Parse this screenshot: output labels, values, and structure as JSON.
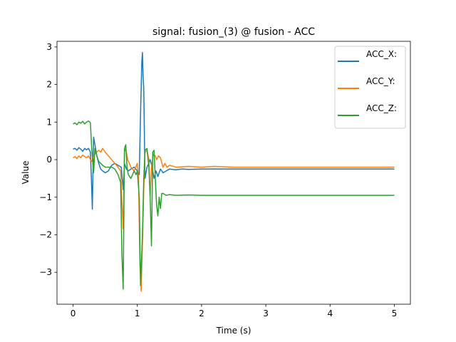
{
  "chart_data": {
    "type": "line",
    "title": "signal: fusion_(3) @ fusion - ACC",
    "xlabel": "Time (s)",
    "ylabel": "Value",
    "xlim": [
      -0.25,
      5.25
    ],
    "ylim": [
      -3.85,
      3.15
    ],
    "xticks": [
      0,
      1,
      2,
      3,
      4,
      5
    ],
    "yticks": [
      -3,
      -2,
      -1,
      0,
      1,
      2,
      3
    ],
    "grid": false,
    "legend_position": "top-right",
    "series": [
      {
        "name": "ACC_X:",
        "color": "#1f77b4",
        "points": [
          [
            0,
            0.28
          ],
          [
            0.03,
            0.3
          ],
          [
            0.06,
            0.25
          ],
          [
            0.09,
            0.32
          ],
          [
            0.12,
            0.28
          ],
          [
            0.15,
            0.22
          ],
          [
            0.18,
            0.3
          ],
          [
            0.21,
            0.26
          ],
          [
            0.24,
            0.3
          ],
          [
            0.27,
            0.2
          ],
          [
            0.285,
            -0.5
          ],
          [
            0.3,
            -1.32
          ],
          [
            0.31,
            -0.3
          ],
          [
            0.32,
            0.6
          ],
          [
            0.34,
            0.4
          ],
          [
            0.37,
            0.1
          ],
          [
            0.4,
            -0.1
          ],
          [
            0.43,
            -0.25
          ],
          [
            0.46,
            -0.3
          ],
          [
            0.5,
            -0.35
          ],
          [
            0.55,
            -0.3
          ],
          [
            0.6,
            -0.15
          ],
          [
            0.65,
            -0.1
          ],
          [
            0.7,
            -0.15
          ],
          [
            0.75,
            -0.2
          ],
          [
            0.78,
            -0.8
          ],
          [
            0.8,
            -0.1
          ],
          [
            0.83,
            -0.25
          ],
          [
            0.86,
            -0.3
          ],
          [
            0.9,
            -0.25
          ],
          [
            0.95,
            -0.2
          ],
          [
            1.0,
            -0.3
          ],
          [
            1.03,
            -0.4
          ],
          [
            1.05,
            1.2
          ],
          [
            1.07,
            2.6
          ],
          [
            1.08,
            2.85
          ],
          [
            1.09,
            2.2
          ],
          [
            1.1,
            1.9
          ],
          [
            1.12,
            -0.5
          ],
          [
            1.15,
            -0.2
          ],
          [
            1.18,
            -0.1
          ],
          [
            1.2,
            0.0
          ],
          [
            1.23,
            -0.2
          ],
          [
            1.26,
            -0.5
          ],
          [
            1.29,
            -0.3
          ],
          [
            1.32,
            -0.45
          ],
          [
            1.36,
            -0.25
          ],
          [
            1.4,
            -0.35
          ],
          [
            1.45,
            -0.3
          ],
          [
            1.5,
            -0.25
          ],
          [
            1.6,
            -0.27
          ],
          [
            1.7,
            -0.25
          ],
          [
            1.8,
            -0.26
          ],
          [
            2.0,
            -0.25
          ],
          [
            2.5,
            -0.25
          ],
          [
            3.0,
            -0.25
          ],
          [
            3.5,
            -0.25
          ],
          [
            4.0,
            -0.25
          ],
          [
            4.5,
            -0.25
          ],
          [
            5.0,
            -0.25
          ]
        ]
      },
      {
        "name": "ACC_Y:",
        "color": "#ff7f0e",
        "points": [
          [
            0,
            0.05
          ],
          [
            0.03,
            0.08
          ],
          [
            0.06,
            0.03
          ],
          [
            0.09,
            0.1
          ],
          [
            0.12,
            0.05
          ],
          [
            0.15,
            0.12
          ],
          [
            0.18,
            0.08
          ],
          [
            0.21,
            0.05
          ],
          [
            0.24,
            0.1
          ],
          [
            0.27,
            0.0
          ],
          [
            0.29,
            -0.05
          ],
          [
            0.31,
            0.05
          ],
          [
            0.34,
            0.15
          ],
          [
            0.37,
            0.2
          ],
          [
            0.4,
            0.25
          ],
          [
            0.43,
            0.2
          ],
          [
            0.46,
            0.3
          ],
          [
            0.5,
            0.2
          ],
          [
            0.55,
            0.1
          ],
          [
            0.6,
            0.0
          ],
          [
            0.65,
            -0.1
          ],
          [
            0.7,
            -0.2
          ],
          [
            0.74,
            -0.3
          ],
          [
            0.76,
            -1.1
          ],
          [
            0.78,
            -1.85
          ],
          [
            0.8,
            0.2
          ],
          [
            0.82,
            0.3
          ],
          [
            0.85,
            0.0
          ],
          [
            0.9,
            -0.2
          ],
          [
            0.95,
            -0.3
          ],
          [
            1.0,
            -0.1
          ],
          [
            1.02,
            -0.5
          ],
          [
            1.04,
            -2.8
          ],
          [
            1.06,
            -3.5
          ],
          [
            1.08,
            -2.2
          ],
          [
            1.1,
            -0.8
          ],
          [
            1.12,
            0.2
          ],
          [
            1.15,
            0.25
          ],
          [
            1.18,
            0.0
          ],
          [
            1.2,
            -1.0
          ],
          [
            1.22,
            -0.2
          ],
          [
            1.25,
            0.15
          ],
          [
            1.28,
            0.1
          ],
          [
            1.3,
            0.0
          ],
          [
            1.33,
            0.1
          ],
          [
            1.36,
            0.05
          ],
          [
            1.4,
            -0.2
          ],
          [
            1.43,
            -0.1
          ],
          [
            1.46,
            -0.2
          ],
          [
            1.5,
            -0.15
          ],
          [
            1.6,
            -0.2
          ],
          [
            1.8,
            -0.18
          ],
          [
            2.0,
            -0.2
          ],
          [
            2.2,
            -0.18
          ],
          [
            2.5,
            -0.2
          ],
          [
            3.0,
            -0.2
          ],
          [
            3.5,
            -0.2
          ],
          [
            4.0,
            -0.2
          ],
          [
            4.5,
            -0.2
          ],
          [
            5.0,
            -0.2
          ]
        ]
      },
      {
        "name": "ACC_Z:",
        "color": "#2ca02c",
        "points": [
          [
            0,
            0.95
          ],
          [
            0.03,
            0.98
          ],
          [
            0.06,
            0.93
          ],
          [
            0.09,
            1.0
          ],
          [
            0.12,
            0.97
          ],
          [
            0.15,
            1.02
          ],
          [
            0.18,
            0.95
          ],
          [
            0.21,
            1.0
          ],
          [
            0.24,
            1.03
          ],
          [
            0.27,
            0.98
          ],
          [
            0.29,
            0.3
          ],
          [
            0.31,
            -0.15
          ],
          [
            0.32,
            -0.35
          ],
          [
            0.34,
            0.3
          ],
          [
            0.37,
            0.1
          ],
          [
            0.4,
            -0.05
          ],
          [
            0.43,
            -0.1
          ],
          [
            0.46,
            -0.15
          ],
          [
            0.5,
            -0.2
          ],
          [
            0.55,
            -0.2
          ],
          [
            0.6,
            -0.2
          ],
          [
            0.65,
            -0.25
          ],
          [
            0.7,
            -0.4
          ],
          [
            0.74,
            -0.6
          ],
          [
            0.76,
            -2.5
          ],
          [
            0.78,
            -3.45
          ],
          [
            0.8,
            0.3
          ],
          [
            0.82,
            0.4
          ],
          [
            0.84,
            -0.2
          ],
          [
            0.86,
            -0.4
          ],
          [
            0.9,
            -0.5
          ],
          [
            0.95,
            -0.3
          ],
          [
            0.98,
            -0.4
          ],
          [
            1.0,
            -0.3
          ],
          [
            1.03,
            -1.0
          ],
          [
            1.05,
            -3.35
          ],
          [
            1.08,
            -2.0
          ],
          [
            1.1,
            -0.5
          ],
          [
            1.12,
            0.25
          ],
          [
            1.15,
            0.3
          ],
          [
            1.18,
            -0.2
          ],
          [
            1.2,
            -1.0
          ],
          [
            1.22,
            -2.3
          ],
          [
            1.24,
            0.2
          ],
          [
            1.26,
            0.25
          ],
          [
            1.28,
            -0.5
          ],
          [
            1.3,
            -1.2
          ],
          [
            1.32,
            -1.5
          ],
          [
            1.34,
            -1.0
          ],
          [
            1.36,
            -1.3
          ],
          [
            1.38,
            -0.9
          ],
          [
            1.4,
            -0.9
          ],
          [
            1.45,
            -0.95
          ],
          [
            1.5,
            -0.93
          ],
          [
            1.6,
            -0.95
          ],
          [
            1.8,
            -0.94
          ],
          [
            2.0,
            -0.95
          ],
          [
            2.5,
            -0.95
          ],
          [
            3.0,
            -0.95
          ],
          [
            3.5,
            -0.95
          ],
          [
            4.0,
            -0.95
          ],
          [
            4.5,
            -0.95
          ],
          [
            5.0,
            -0.95
          ]
        ]
      }
    ]
  }
}
